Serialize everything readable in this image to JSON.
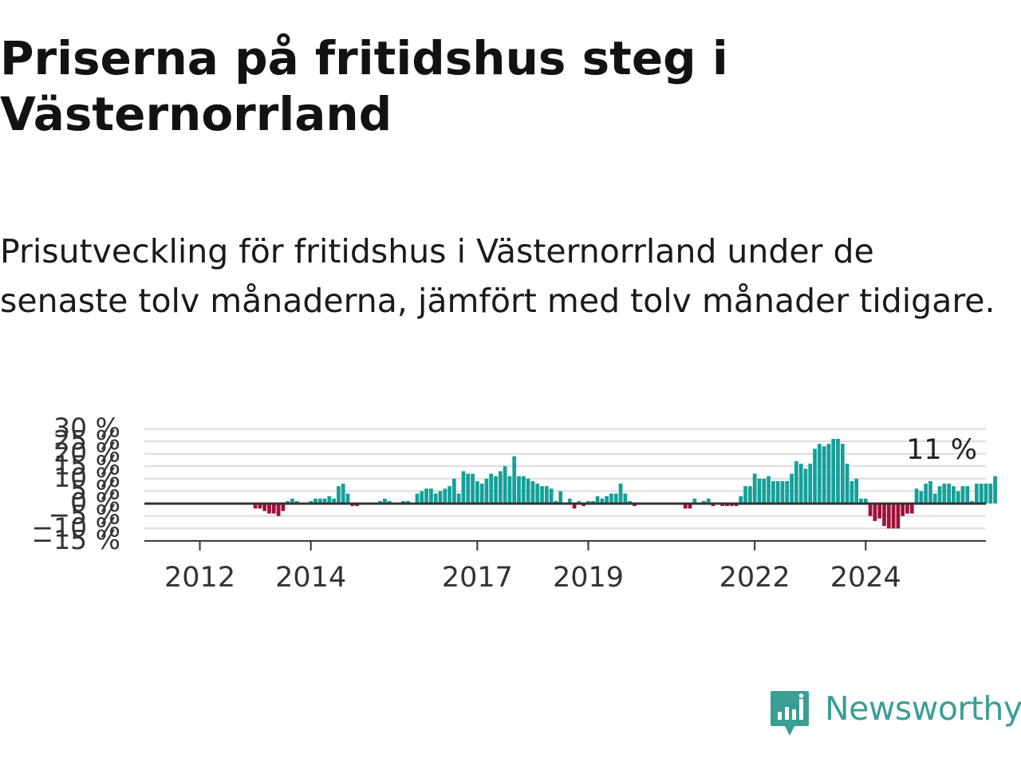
{
  "title": "Priserna på fritidshus steg i Västernorrland",
  "subtitle": "Prisutveckling för fritidshus i Västernorrland under de senaste tolv månaderna, jämfört med tolv månader tidigare.",
  "brand": {
    "name": "Newsworthy"
  },
  "colors": {
    "positive": "#14a098",
    "negative": "#a0103a",
    "grid": "#dcdcdc",
    "zero_line": "#333333",
    "axis": "#333333",
    "text": "#333333",
    "brand": "#3a9e93"
  },
  "chart_data": {
    "type": "bar",
    "annotation": "11 %",
    "ylim": [
      -15,
      30
    ],
    "yticks": [
      30,
      25,
      20,
      15,
      10,
      5,
      0,
      -5,
      -10,
      -15
    ],
    "ytick_labels": [
      "30 %",
      "25 %",
      "20 %",
      "15 %",
      "10 %",
      "5 %",
      "0 %",
      "−5 %",
      "−10 %",
      "−15 %"
    ],
    "xticks": [
      2012,
      2014,
      2017,
      2019,
      2022,
      2024
    ],
    "x_start": "2011-01",
    "x_end": "2026-03",
    "values": [
      null,
      null,
      null,
      null,
      null,
      null,
      null,
      null,
      null,
      null,
      null,
      null,
      null,
      null,
      null,
      null,
      null,
      null,
      null,
      null,
      null,
      null,
      null,
      null,
      -2,
      -2,
      -3,
      -4,
      -4,
      -5,
      -3,
      1,
      2,
      1,
      0,
      0,
      1,
      2,
      2,
      2,
      3,
      2,
      7,
      8,
      4,
      -1,
      -1,
      0,
      0,
      0,
      0,
      1,
      2,
      1,
      0,
      0,
      1,
      1,
      0,
      4,
      5,
      6,
      6,
      4,
      5,
      6,
      7,
      10,
      4,
      13,
      12,
      12,
      9,
      8,
      10,
      12,
      11,
      13,
      15,
      11,
      19,
      11,
      11,
      10,
      9,
      8,
      7,
      7,
      6,
      1,
      5,
      0,
      2,
      -2,
      1,
      -1,
      1,
      1,
      3,
      2,
      3,
      4,
      4,
      8,
      4,
      1,
      -1,
      0,
      0,
      0,
      0,
      0,
      0,
      0,
      0,
      0,
      0,
      -2,
      -2,
      2,
      0,
      1,
      2,
      -1,
      0,
      -1,
      -1,
      -1,
      -1,
      3,
      7,
      7,
      12,
      10,
      10,
      11,
      9,
      9,
      9,
      9,
      12,
      17,
      16,
      14,
      16,
      22,
      24,
      23,
      24,
      26,
      26,
      24,
      16,
      9,
      10,
      2,
      2,
      -5,
      -7,
      -6,
      -9,
      -10,
      -10,
      -10,
      -5,
      -4,
      -4,
      6,
      5,
      8,
      9,
      4,
      7,
      8,
      8,
      7,
      5,
      7,
      7,
      1,
      8,
      8,
      8,
      8,
      11
    ]
  }
}
